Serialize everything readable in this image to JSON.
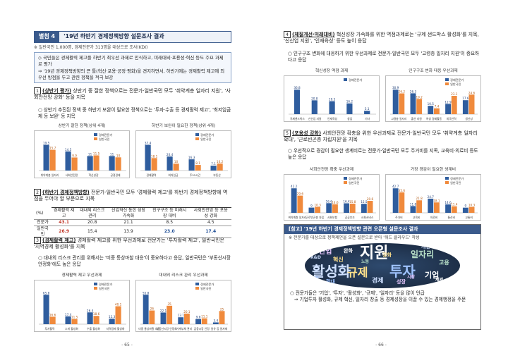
{
  "left_page": {
    "title_tag": "별첨 4",
    "title_text": "'19년 하반기 경제정책방향 설문조사 결과",
    "survey_note": "※ 일반국민 1,000명, 경제전문가 313명을 대상으로 조사(KDI)",
    "summary": [
      "◇ 국민들은 경제활력 제고를 하반기 최우선 과제로 인식하고, 미래대비·포용성·혁신 등도 주요 과제로 평가",
      "⇒ '19년 경제정책방향의 큰 틀(혁신·포용·공정·평화)을 견지하면서, 하반기에는 경제활력 제고에 최우선 방점을 두고 관련 정책을 적극 보강"
    ],
    "sec1": {
      "num": "1",
      "key": "(상반기 평가)",
      "text": "상반기 중 잘한 정책으로는 전문가·일반국민 모두 '취약계층 일자리 지원', '사회안전망 강화' 등을 지목",
      "bullet": "○ 상반기 추진된 정책 중 하반기 보완이 필요한 정책으로는 '투자·수출 등 경제활력 제고', '최저임금제 등 보완' 등 지목",
      "chart_left_title": "상반기 잘한 정책(상위 4개)",
      "chart_right_title": "하반기 보완이 필요한 정책(상위 4개)"
    },
    "sec2": {
      "num": "2",
      "key": "(하반기 경제정책방향)",
      "text": "전문가·일반국민 모두 '경제활력 제고'를 하반기 경제정책방향에 역점을 두어야 할 부문으로 지목",
      "table_unit": "(%)",
      "table_headers": [
        "경제활력 제고",
        "대내외 리스크 관리",
        "산업혁신 통한 성장 가속화",
        "인구구조 등 미래시장 대비",
        "사회안전망 등 포용성 강화"
      ],
      "rows": [
        {
          "label": "전문가",
          "values": [
            "43.1",
            "20.8",
            "21.1",
            "8.5",
            "4.5"
          ]
        },
        {
          "label": "일반국민",
          "values": [
            "26.9",
            "15.4",
            "13.9",
            "23.0",
            "17.4"
          ]
        }
      ]
    },
    "sec3": {
      "num": "3",
      "key": "(경제활력 제고)",
      "text": "경제활력 제고를 위한 우선과제로 전문가는 '투자활력 제고', 일반국민은 '지역경제 활성화'를 지목",
      "bullet": "○ 대내외 리스크 관리를 위해서는 '미중 통상마찰 대응'이 중요하다고 응답, 일반국민은 '부동산시장 안정화'에도 높은 응답",
      "chart_left_title": "경제활력 제고 우선과제",
      "chart_right_title": "대내외 리스크 관리 우선과제"
    },
    "page_number": "- 65 -"
  },
  "right_page": {
    "sec4": {
      "num": "4",
      "key": "(체질개선·미래대비)",
      "text": "혁신성장 가속화를 위한 역점과제로는 '규제 샌드박스 활성화'를 지목, '신산업 지원', '인재육성' 등도 높이 응답",
      "bullet": "○ 인구구조 변화에 대응하기 위한 우선과제로 전문가·일반국민 모두 '고령층 일자리 지원'이 중요하다고 응답",
      "chart_left_title": "혁신성장 역점 과제",
      "chart_right_title": "인구구조 변화 대응 우선과제"
    },
    "sec5": {
      "num": "5",
      "key": "(포용성 강화)",
      "text": "사회안전망 확충을 위한 우선과제로 전문가·일반국민 모두 '취약계층 일자리 확대', '근로빈곤층 자립지원'을 지목",
      "bullet": "○ 우선적으로 경감이 필요한 생계비로는 전문가·일반국민 모두 주거비를 지목, 교육비·의료비 등도 높은 응답",
      "chart_left_title": "사회안전망 확충 우선과제",
      "chart_right_title": "가장 경감이 필요한 생계비"
    },
    "ref": {
      "title": "[참고] '19년 하반기 경제정책방향 관련 오픈형 설문조사 결과",
      "note": "※ 전문가를 대상으로 정책제언을 오픈 설문으로 받아 '워드 클라우드' 작성",
      "cloud_words": [
        "지원",
        "활성화",
        "투자",
        "규제",
        "일자리",
        "산업",
        "기업",
        "경제",
        "정책",
        "혁신",
        "고용",
        "성장",
        "완화",
        "개선",
        "확대",
        "강화",
        "노동",
        "시장",
        "세제",
        "R&D"
      ],
      "bullet1": "○ 전문가들은 '기업', '투자', '활성화', '규제', '일자리' 등을 많이 언급",
      "bullet2": "⇒ 기업투자 활성화, 규제 혁신, 일자리 창출 등 경제성장을 이끌 수 있는 경제행정을 주문"
    },
    "page_number": "- 66 -"
  },
  "legend": {
    "expert": "경제전문가",
    "public": "일반국민"
  },
  "colors": {
    "expert": "#2f5d9e",
    "public": "#f08a3c",
    "title_bar": "#3a5a8c"
  },
  "chart_data": [
    {
      "type": "bar",
      "title": "상반기 잘한 정책(상위 4개)",
      "categories": [
        "취약계층 일자리",
        "사회안전망",
        "혁신성장",
        "공정경제"
      ],
      "series": [
        {
          "name": "경제전문가",
          "values": [
            19.5,
            14.5,
            11.0,
            11.0
          ]
        },
        {
          "name": "일반국민",
          "values": [
            15.7,
            9.9,
            11.5,
            10.0
          ]
        }
      ]
    },
    {
      "type": "bar",
      "title": "하반기 보완이 필요한 정책(상위 4개)",
      "categories": [
        "경제활력",
        "최저임금",
        "주52시간",
        "부동산"
      ],
      "series": [
        {
          "name": "경제전문가",
          "values": [
            37.4,
            20.4,
            16.3,
            7.1
          ]
        },
        {
          "name": "일반국민",
          "values": [
            18.1,
            10.0,
            8.1,
            10.2
          ]
        }
      ]
    },
    {
      "type": "bar",
      "title": "경제활력 제고 우선과제",
      "categories": [
        "투자활력",
        "소비 활성화",
        "수출 활성화",
        "지역경제 활성화"
      ],
      "series": [
        {
          "name": "경제전문가",
          "values": [
            65.8,
            17.4,
            26.4,
            12.3
          ]
        },
        {
          "name": "일반국민",
          "values": [
            16.6,
            11.5,
            18.6,
            40.1
          ]
        }
      ]
    },
    {
      "type": "bar",
      "title": "대내외 리스크 관리 우선과제",
      "categories": [
        "미중 통상마찰 대응",
        "부동산시장 안정화",
        "가계부채 관리",
        "금융시장 안정",
        "원유 등 원자재"
      ],
      "series": [
        {
          "name": "경제전문가",
          "values": [
            55.8,
            22.1,
            13.1,
            9.8,
            3.4
          ]
        },
        {
          "name": "일반국민",
          "values": [
            26.0,
            35.0,
            20.1,
            11.1,
            25.0
          ]
        }
      ]
    },
    {
      "type": "bar",
      "title": "혁신성장 역점 과제",
      "categories": [
        "규제샌드박스",
        "신산업 지원",
        "인재육성",
        "창업",
        "기타"
      ],
      "series": [
        {
          "name": "경제전문가",
          "values": [
            36.8,
            20.8,
            19.5,
            16.2,
            5.1
          ]
        }
      ]
    },
    {
      "type": "bar",
      "title": "인구구조 변화 대응 우선과제",
      "categories": [
        "고령층 일자리",
        "출산 지원",
        "여성 경제활동",
        "외국인력",
        "생산성"
      ],
      "series": [
        {
          "name": "경제전문가",
          "values": [
            30.9,
            26.3,
            10.5,
            12.9,
            17.6
          ]
        },
        {
          "name": "일반국민",
          "values": [
            26.2,
            19.2,
            7.4,
            23.1,
            24.6
          ]
        }
      ]
    },
    {
      "type": "bar",
      "title": "사회안전망 확충 우선과제",
      "categories": [
        "취약계층 일자리",
        "근로빈곤층 자립",
        "사회보험",
        "공공부조",
        "사회서비스"
      ],
      "series": [
        {
          "name": "경제전문가",
          "values": [
            42.2,
            9.0,
            16.6,
            16.4,
            15.5
          ]
        },
        {
          "name": "일반국민",
          "values": [
            29.6,
            10.3,
            14.6,
            15.8,
            20.6
          ]
        }
      ]
    },
    {
      "type": "bar",
      "title": "가장 경감이 필요한 생계비",
      "categories": [
        "주거비",
        "교육비",
        "의료비",
        "통신비",
        "교통비"
      ],
      "series": [
        {
          "name": "경제전문가",
          "values": [
            42.7,
            11.8,
            24.7,
            14.6,
            9.0
          ]
        },
        {
          "name": "일반국민",
          "values": [
            35.6,
            21.8,
            18.1,
            11.4,
            10.3
          ]
        }
      ]
    }
  ]
}
